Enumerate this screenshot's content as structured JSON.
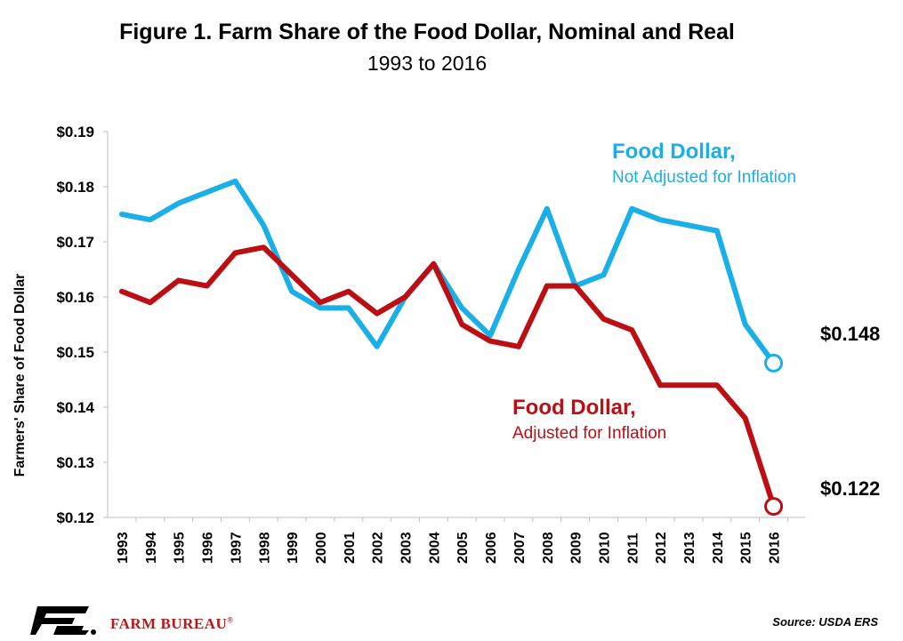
{
  "header": {
    "title": "Figure 1. Farm Share of the Food Dollar, Nominal and Real",
    "subtitle": "1993 to 2016"
  },
  "chart_data": {
    "type": "line",
    "title": "Figure 1. Farm Share of the Food Dollar, Nominal and Real",
    "subtitle": "1993 to 2016",
    "xlabel": "",
    "ylabel": "Farmers' Share of Food Dollar",
    "ylim": [
      0.12,
      0.19
    ],
    "yticks": [
      "$0.12",
      "$0.13",
      "$0.14",
      "$0.15",
      "$0.16",
      "$0.17",
      "$0.18",
      "$0.19"
    ],
    "categories": [
      "1993",
      "1994",
      "1995",
      "1996",
      "1997",
      "1998",
      "1999",
      "2000",
      "2001",
      "2002",
      "2003",
      "2004",
      "2005",
      "2006",
      "2007",
      "2008",
      "2009",
      "2010",
      "2011",
      "2012",
      "2013",
      "2014",
      "2015",
      "2016"
    ],
    "grid": false,
    "series": [
      {
        "name": "Food Dollar, Not Adjusted for Inflation",
        "label_line1": "Food Dollar,",
        "label_line2": "Not Adjusted for Inflation",
        "color": "#1aafe6",
        "values": [
          0.175,
          0.174,
          0.177,
          0.179,
          0.181,
          0.173,
          0.161,
          0.158,
          0.158,
          0.151,
          0.16,
          0.166,
          0.158,
          0.153,
          0.165,
          0.176,
          0.162,
          0.164,
          0.176,
          0.174,
          0.173,
          0.172,
          0.155,
          0.148
        ],
        "end_label": "$0.148"
      },
      {
        "name": "Food Dollar, Adjusted for Inflation",
        "label_line1": "Food Dollar,",
        "label_line2": "Adjusted for Inflation",
        "color": "#bb0f14",
        "values": [
          0.161,
          0.159,
          0.163,
          0.162,
          0.168,
          0.169,
          0.164,
          0.159,
          0.161,
          0.157,
          0.16,
          0.166,
          0.155,
          0.152,
          0.151,
          0.162,
          0.162,
          0.156,
          0.154,
          0.144,
          0.144,
          0.144,
          0.138,
          0.122
        ],
        "end_label": "$0.122"
      }
    ]
  },
  "footer": {
    "brand": "FARM BUREAU",
    "brand_mark": "®",
    "logo_letters": "FB",
    "source": "Source: USDA ERS"
  },
  "colors": {
    "nominal": "#1aafe6",
    "real": "#bb0f14",
    "brand_red": "#b31b1b"
  }
}
